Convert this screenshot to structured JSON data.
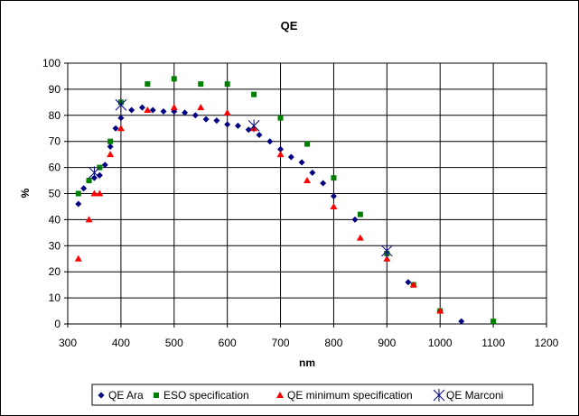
{
  "chart_data": {
    "type": "scatter",
    "title": "QE",
    "xlabel": "nm",
    "ylabel": "%",
    "xlim": [
      300,
      1200
    ],
    "ylim": [
      0,
      100
    ],
    "x_ticks": [
      300,
      400,
      500,
      600,
      700,
      800,
      900,
      1000,
      1100,
      1200
    ],
    "y_ticks": [
      0,
      10,
      20,
      30,
      40,
      50,
      60,
      70,
      80,
      90,
      100
    ],
    "grid": true,
    "legend_position": "bottom",
    "series": [
      {
        "name": "QE Ara",
        "marker": "diamond",
        "color": "#000080",
        "x": [
          320,
          330,
          340,
          350,
          360,
          370,
          380,
          390,
          400,
          420,
          440,
          460,
          480,
          500,
          520,
          540,
          560,
          580,
          600,
          620,
          640,
          660,
          680,
          700,
          720,
          740,
          760,
          780,
          800,
          840,
          900,
          940,
          1000,
          1040
        ],
        "y": [
          46,
          52,
          55,
          56,
          57,
          61,
          68,
          75,
          79,
          82,
          83,
          82,
          81.5,
          81.5,
          81,
          80,
          78.5,
          78,
          76.5,
          76,
          74.5,
          72.5,
          70,
          67,
          64,
          62,
          58,
          54,
          49,
          40,
          27,
          16,
          5,
          1
        ]
      },
      {
        "name": "ESO specification",
        "marker": "square",
        "color": "#008000",
        "x": [
          320,
          340,
          360,
          380,
          400,
          450,
          500,
          550,
          600,
          650,
          700,
          750,
          800,
          850,
          900,
          950,
          1000,
          1100
        ],
        "y": [
          50,
          55,
          60,
          70,
          85,
          92,
          94,
          92,
          92,
          88,
          79,
          69,
          56,
          42,
          27,
          15,
          5,
          1
        ]
      },
      {
        "name": "QE minimum specification",
        "marker": "triangle",
        "color": "#ff0000",
        "x": [
          320,
          340,
          350,
          360,
          380,
          400,
          450,
          500,
          550,
          600,
          650,
          700,
          750,
          800,
          850,
          900,
          950,
          1000
        ],
        "y": [
          25,
          40,
          50,
          50,
          65,
          75,
          82,
          83,
          83,
          81,
          75,
          65,
          55,
          45,
          33,
          25,
          15,
          5
        ]
      },
      {
        "name": "QE Marconi",
        "marker": "asterisk",
        "color": "#000080",
        "x": [
          350,
          400,
          650,
          900
        ],
        "y": [
          58,
          84,
          76,
          28
        ]
      }
    ]
  }
}
